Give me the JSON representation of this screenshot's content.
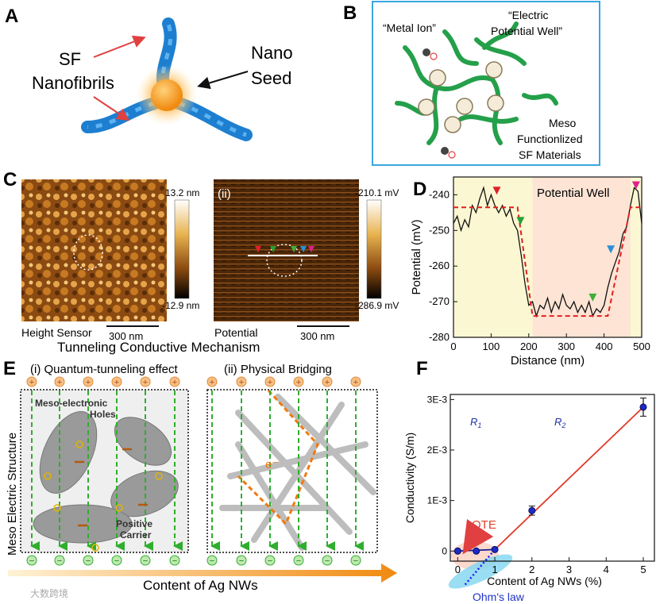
{
  "panelA": {
    "letter": "A",
    "sf_line1": "SF",
    "sf_line2": "Nanofibrils",
    "nano_line1": "Nano",
    "nano_line2": "Seed"
  },
  "panelB": {
    "letter": "B",
    "metal_ion": "“Metal Ion”",
    "epw_line1": "“Electric",
    "epw_line2": "Potential Well”",
    "meso_line1": "Meso",
    "meso_line2": "Functionlized",
    "meso_line3": "SF Materials"
  },
  "panelC": {
    "letter": "C",
    "sub_ii": "(ii)",
    "height_max": "13.2 nm",
    "height_min": "-12.9 nm",
    "pot_max": "-210.1 mV",
    "pot_min": "-286.9 mV",
    "height_label": "Height Sensor",
    "scale1": "300 nm",
    "potential_label": "Potential",
    "scale2": "300 nm",
    "mechanism_title": "Tunneling Conductive Mechanism"
  },
  "panelD": {
    "letter": "D",
    "well_label": "Potential Well"
  },
  "panelE": {
    "letter": "E",
    "title_i": "(i) Quantum-tunneling effect",
    "title_ii": "(ii) Physical Bridging",
    "side_label": "Meso Electric Structure",
    "holes_line1": "Meso-electronic",
    "holes_line2": "Holes",
    "carrier_line1": "Positive",
    "carrier_line2": "Carrier",
    "electron": "e⁻",
    "plus_sign": "+",
    "minus_sign": "−",
    "arrow_label": "Content of Ag NWs"
  },
  "panelF": {
    "letter": "F",
    "r1": "R",
    "r1_sub": "1",
    "r2": "R",
    "r2_sub": "2",
    "qte": "QTE",
    "ohm": "Ohm's law"
  },
  "watermark": "大数跨境",
  "chart_data": [
    {
      "id": "D",
      "type": "line",
      "xlabel": "Distance (nm)",
      "ylabel": "Potential (mV)",
      "xlim": [
        0,
        500
      ],
      "ylim": [
        -280,
        -235
      ],
      "xticks": [
        0,
        100,
        200,
        300,
        400,
        500
      ],
      "yticks": [
        -240,
        -250,
        -260,
        -270,
        -280
      ],
      "xtick_labels": [
        "0",
        "100",
        "200",
        "300",
        "400",
        "500"
      ],
      "ytick_labels": [
        "-240",
        "-250",
        "-260",
        "-270",
        "-280"
      ],
      "grid": false,
      "series": [
        {
          "style": "solid",
          "color": "#111111",
          "x": [
            0,
            10,
            20,
            30,
            40,
            50,
            60,
            70,
            80,
            90,
            100,
            110,
            120,
            130,
            140,
            150,
            160,
            170,
            180,
            190,
            200,
            210,
            220,
            230,
            240,
            250,
            260,
            270,
            280,
            290,
            300,
            310,
            320,
            330,
            340,
            350,
            360,
            370,
            380,
            390,
            400,
            410,
            420,
            430,
            440,
            450,
            460,
            470,
            480,
            490,
            500
          ],
          "y": [
            -248,
            -246,
            -250,
            -247,
            -249,
            -243,
            -245,
            -241,
            -238,
            -243,
            -240,
            -243,
            -245,
            -243,
            -246,
            -244,
            -248,
            -250,
            -257,
            -265,
            -271,
            -270,
            -274,
            -271,
            -272,
            -269,
            -273,
            -270,
            -272,
            -268,
            -271,
            -272,
            -270,
            -273,
            -271,
            -273,
            -270,
            -274,
            -272,
            -273,
            -271,
            -266,
            -262,
            -259,
            -256,
            -251,
            -249,
            -243,
            -238,
            -239,
            -248
          ]
        },
        {
          "style": "dashed",
          "color": "#e02020",
          "x": [
            0,
            170,
            210,
            410,
            470,
            500
          ],
          "y": [
            -243.5,
            -243.5,
            -274,
            -274,
            -243.5,
            -243.5
          ]
        }
      ],
      "markers": [
        {
          "x": 115,
          "y": -239.5,
          "color": "#e0202a"
        },
        {
          "x": 178,
          "y": -248,
          "color": "#27a035"
        },
        {
          "x": 370,
          "y": -269.5,
          "color": "#3fae3a"
        },
        {
          "x": 418,
          "y": -256,
          "color": "#2a8fd6"
        },
        {
          "x": 485,
          "y": -238,
          "color": "#e0208a"
        }
      ],
      "shaded_region": {
        "x_start": 210,
        "x_end": 470
      }
    },
    {
      "id": "F",
      "type": "scatter",
      "xlabel": "Content of Ag NWs (%)",
      "ylabel": "Conductivity (S/m)",
      "xlim": [
        -0.2,
        5.3
      ],
      "ylim": [
        -0.0002,
        0.0031
      ],
      "xticks": [
        0,
        1,
        2,
        3,
        4,
        5
      ],
      "xtick_labels": [
        "0",
        "1",
        "2",
        "3",
        "4",
        "5"
      ],
      "yticks": [
        0,
        0.001,
        0.002,
        0.003
      ],
      "ytick_labels": [
        "0",
        "1E-3",
        "2E-3",
        "3E-3"
      ],
      "grid": false,
      "points": [
        {
          "x": 0,
          "y": 0.0
        },
        {
          "x": 0.5,
          "y": 0.0
        },
        {
          "x": 1,
          "y": 3e-05
        },
        {
          "x": 2,
          "y": 0.0008
        },
        {
          "x": 5,
          "y": 0.00285
        }
      ],
      "error_bars": [
        0,
        0,
        0,
        9e-05,
        0.00018
      ],
      "fit_lines": [
        {
          "name": "QTE",
          "x": [
            0,
            1
          ],
          "y": [
            0.0,
            3e-05
          ]
        },
        {
          "name": "Ohm's law",
          "x": [
            1,
            5
          ],
          "y": [
            3e-05,
            0.00285
          ]
        }
      ]
    }
  ]
}
